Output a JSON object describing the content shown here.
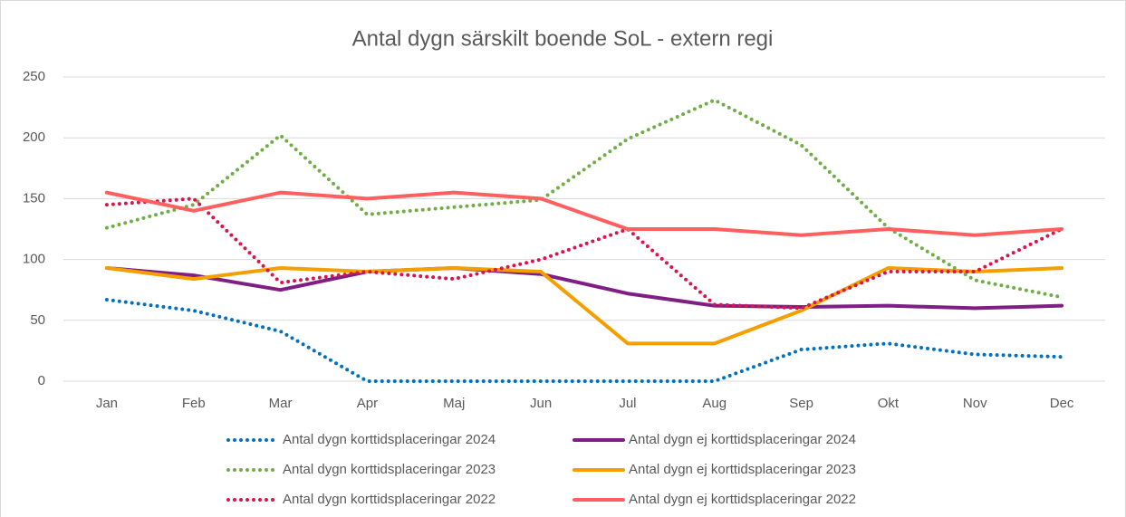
{
  "chart_data": {
    "type": "line",
    "title": "Antal dygn särskilt boende SoL - extern regi",
    "categories": [
      "Jan",
      "Feb",
      "Mar",
      "Apr",
      "Maj",
      "Jun",
      "Jul",
      "Aug",
      "Sep",
      "Okt",
      "Nov",
      "Dec"
    ],
    "ylim": [
      0,
      250
    ],
    "yticks": [
      0,
      50,
      100,
      150,
      200,
      250
    ],
    "grid": true,
    "legend": "bottom",
    "series": [
      {
        "name": "Antal dygn korttidsplaceringar 2024",
        "color": "#0070c0",
        "dash": "dotted",
        "values": [
          67,
          58,
          41,
          0,
          0,
          0,
          0,
          0,
          26,
          31,
          22,
          20
        ]
      },
      {
        "name": "Antal dygn ej korttidsplaceringar 2024",
        "color": "#7f1f86",
        "dash": "solid",
        "values": [
          93,
          87,
          75,
          90,
          93,
          88,
          72,
          62,
          61,
          62,
          60,
          62
        ]
      },
      {
        "name": "Antal dygn korttidsplaceringar 2023",
        "color": "#70ad47",
        "dash": "dotted",
        "values": [
          126,
          145,
          202,
          137,
          143,
          149,
          199,
          231,
          194,
          126,
          83,
          69
        ]
      },
      {
        "name": "Antal dygn ej korttidsplaceringar 2023",
        "color": "#f59e00",
        "dash": "solid",
        "values": [
          93,
          84,
          93,
          90,
          93,
          90,
          31,
          31,
          58,
          93,
          90,
          93
        ]
      },
      {
        "name": "Antal dygn korttidsplaceringar 2022",
        "color": "#d9144b",
        "dash": "dotted",
        "values": [
          145,
          150,
          81,
          90,
          84,
          100,
          125,
          63,
          60,
          90,
          90,
          125
        ]
      },
      {
        "name": "Antal dygn ej korttidsplaceringar 2022",
        "color": "#ff5f5f",
        "dash": "solid",
        "values": [
          155,
          140,
          155,
          150,
          155,
          150,
          125,
          125,
          120,
          125,
          120,
          125
        ]
      }
    ]
  }
}
